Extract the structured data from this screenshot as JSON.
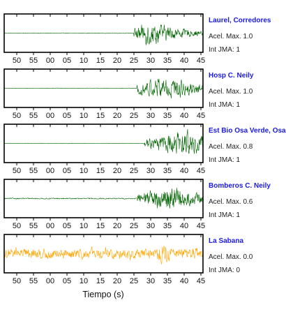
{
  "chart_data": {
    "type": "line",
    "xlabel": "Tiempo (s)",
    "x_tick_labels": [
      "50",
      "55",
      "00",
      "05",
      "10",
      "15",
      "20",
      "25",
      "30",
      "35",
      "40",
      "45"
    ],
    "grid": false,
    "panels": [
      {
        "station": "Laurel, Corredores",
        "accel_label": "Acel. Max. 1.0",
        "accel_max": 1.0,
        "jma_label": "Int JMA: 1",
        "jma": 1,
        "color": "#006400",
        "onset_tick": 25.0,
        "peak_tick": 29.5,
        "amplitude": 0.92,
        "noise": 0.02
      },
      {
        "station": "Hosp C. Neily",
        "accel_label": "Acel. Max. 1.0",
        "accel_max": 1.0,
        "jma_label": "Int JMA: 1",
        "jma": 1,
        "color": "#006400",
        "onset_tick": 25.8,
        "peak_tick": 35.0,
        "amplitude": 0.92,
        "noise": 0.02
      },
      {
        "station": "Est Bio Osa Verde, Osa",
        "accel_label": "Acel. Max. 0.8",
        "accel_max": 0.8,
        "jma_label": "Int JMA: 1",
        "jma": 1,
        "color": "#006400",
        "onset_tick": 28.0,
        "peak_tick": 40.5,
        "amplitude": 0.95,
        "noise": 0.015
      },
      {
        "station": "Bomberos C. Neily",
        "accel_label": "Acel. Max. 0.6",
        "accel_max": 0.6,
        "jma_label": "Int JMA: 1",
        "jma": 1,
        "color": "#006400",
        "onset_tick": 26.0,
        "peak_tick": 36.0,
        "amplitude": 0.9,
        "noise": 0.04
      },
      {
        "station": "La Sabana",
        "accel_label": "Acel. Max. 0.0",
        "accel_max": 0.0,
        "jma_label": "Int JMA: 0",
        "jma": 0,
        "color": "#FFA500",
        "onset_tick": 0.0,
        "peak_tick": 34.0,
        "amplitude": 0.55,
        "noise": 0.3
      }
    ]
  },
  "colors": {
    "station_name": "#1A1AE6",
    "frame": "#000000"
  }
}
